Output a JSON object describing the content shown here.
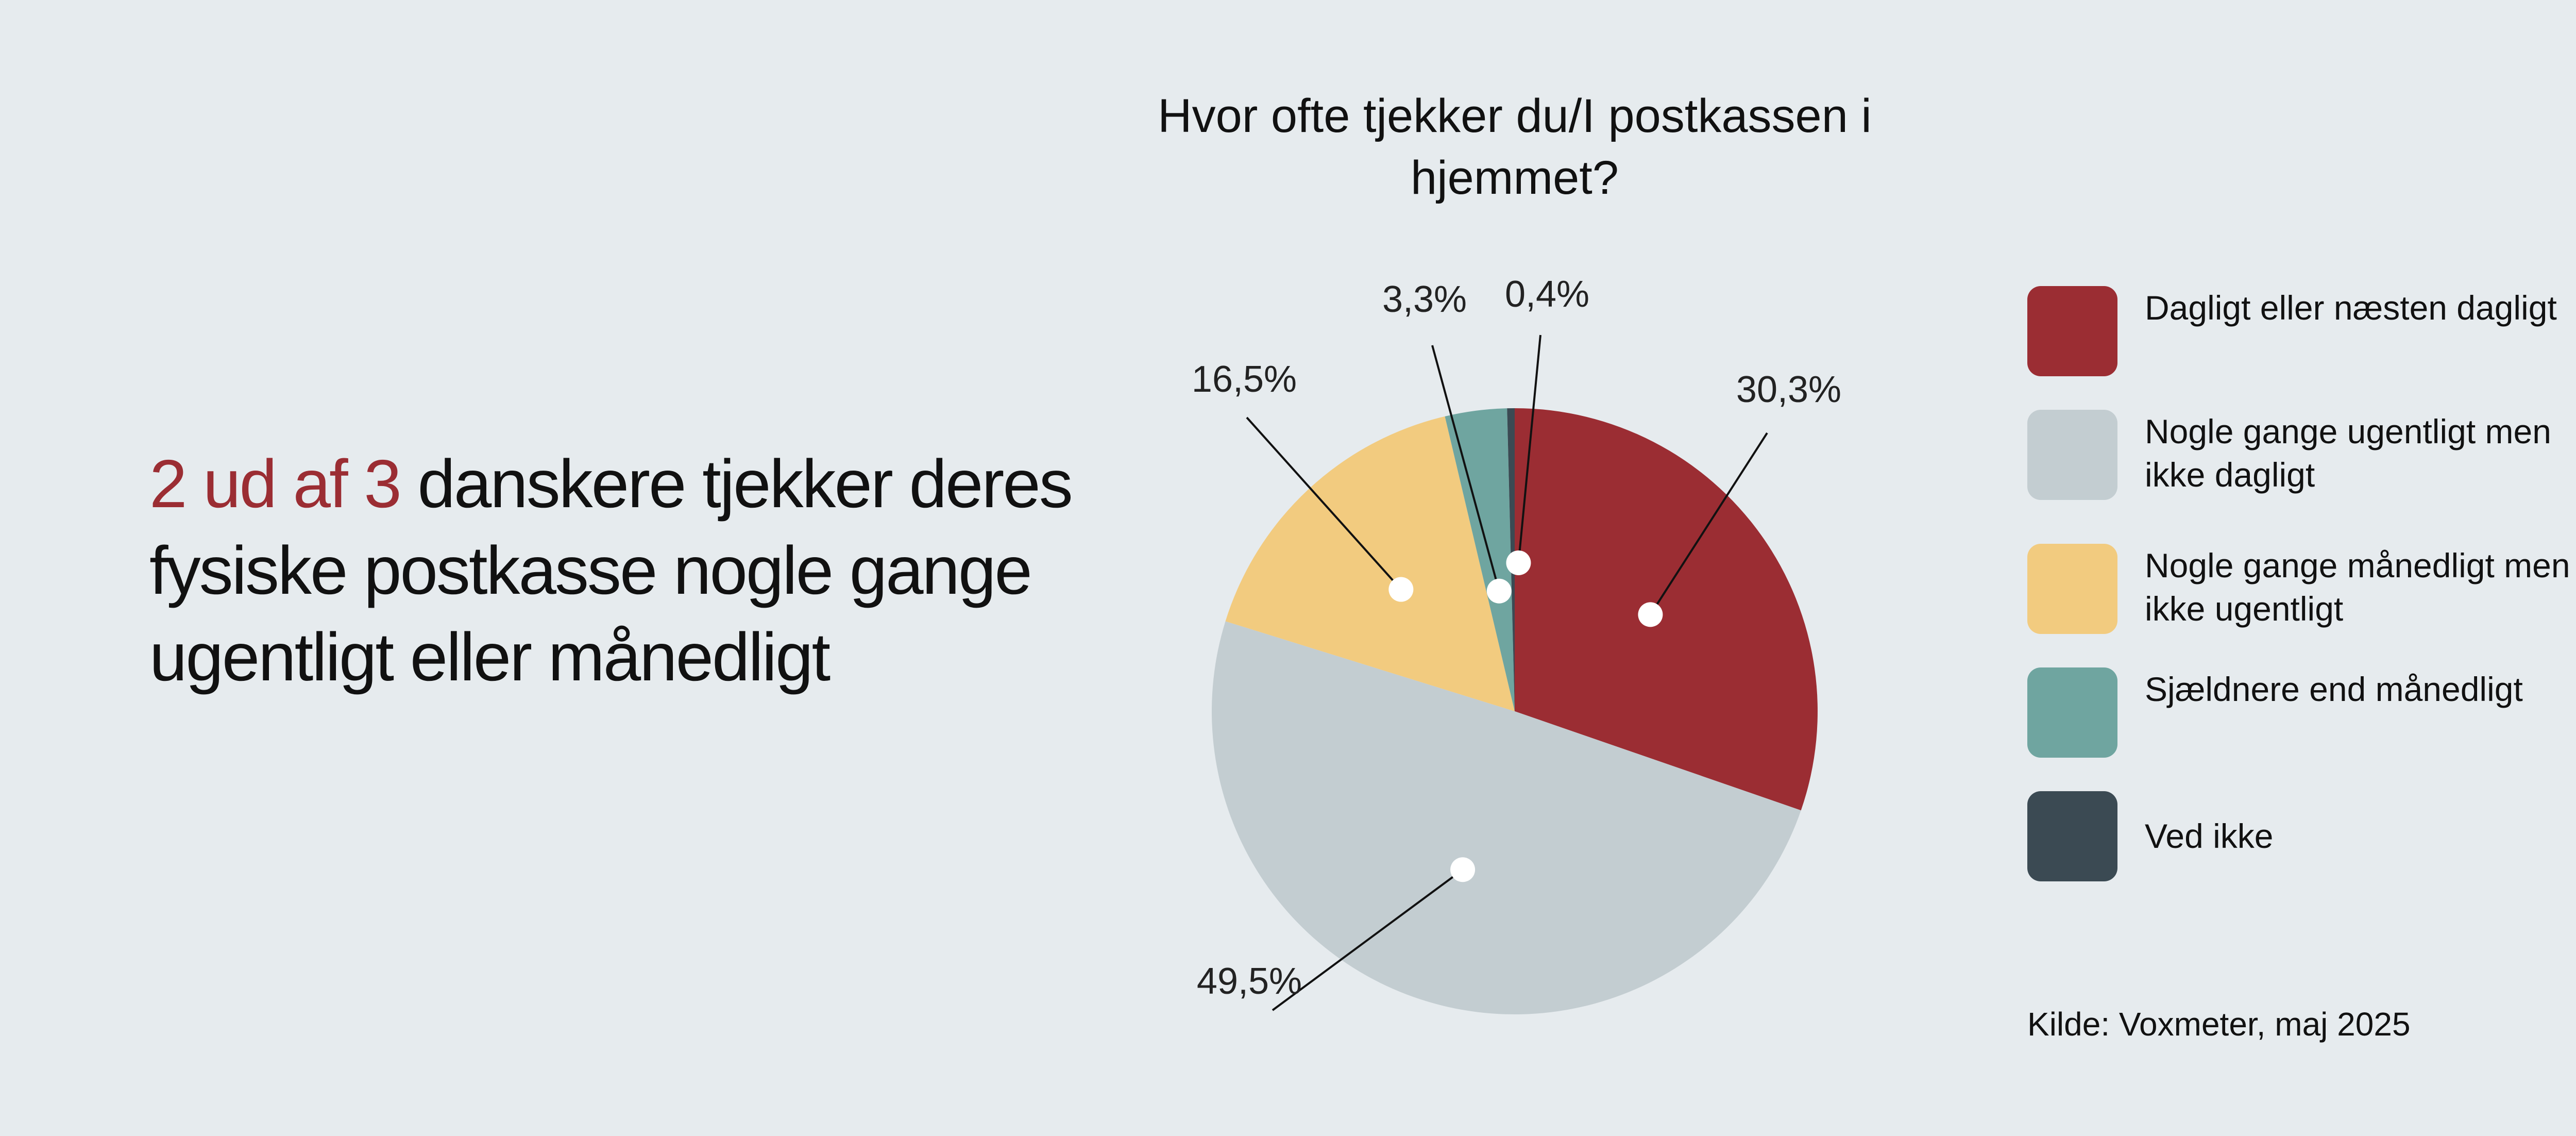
{
  "headline": {
    "highlight": "2 ud af 3",
    "rest": " danskere tjekker deres fysiske postkasse nogle gange ugentligt eller månedligt"
  },
  "colors": {
    "background": "#e6ebee",
    "accent": "#9b2d33"
  },
  "chart_data": {
    "type": "pie",
    "title": "Hvor ofte tjekker du/I postkassen i hjemmet?",
    "slices": [
      {
        "label": "Dagligt eller næsten dagligt",
        "value": 30.3,
        "value_label": "30,3%",
        "color": "#9b2d33"
      },
      {
        "label": "Nogle gange ugentligt men ikke dagligt",
        "value": 49.5,
        "value_label": "49,5%",
        "color": "#c3cdd1"
      },
      {
        "label": "Nogle gange månedligt men ikke ugentligt",
        "value": 16.5,
        "value_label": "16,5%",
        "color": "#f2cb7f"
      },
      {
        "label": "Sjældnere end månedligt",
        "value": 3.3,
        "value_label": "3,3%",
        "color": "#6fa5a0"
      },
      {
        "label": "Ved ikke",
        "value": 0.4,
        "value_label": "0,4%",
        "color": "#3b4a53"
      }
    ],
    "legend_position": "right",
    "start_angle": "12 o'clock",
    "direction": "clockwise"
  },
  "source": "Kilde: Voxmeter, maj 2025"
}
